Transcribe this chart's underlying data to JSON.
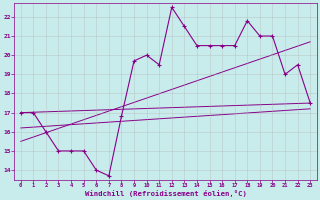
{
  "xlabel": "Windchill (Refroidissement éolien,°C)",
  "background_color": "#c8ecec",
  "grid_color": "#b0b0b0",
  "line_color": "#880088",
  "xlim": [
    -0.5,
    23.5
  ],
  "ylim": [
    13.5,
    22.7
  ],
  "xticks": [
    0,
    1,
    2,
    3,
    4,
    5,
    6,
    7,
    8,
    9,
    10,
    11,
    12,
    13,
    14,
    15,
    16,
    17,
    18,
    19,
    20,
    21,
    22,
    23
  ],
  "yticks": [
    14,
    15,
    16,
    17,
    18,
    19,
    20,
    21,
    22
  ],
  "series1_x": [
    0,
    1,
    2,
    3,
    4,
    5,
    6,
    7,
    8,
    9,
    10,
    11,
    12,
    13,
    14,
    15,
    16,
    17,
    18,
    19,
    20,
    21,
    22,
    23
  ],
  "series1_y": [
    17.0,
    17.0,
    16.0,
    15.0,
    15.0,
    15.0,
    14.0,
    13.7,
    16.8,
    19.7,
    20.0,
    19.5,
    22.5,
    21.5,
    20.5,
    20.5,
    20.5,
    20.5,
    21.8,
    21.0,
    21.0,
    19.0,
    19.5,
    17.5
  ],
  "line1_x": [
    0,
    23
  ],
  "line1_y": [
    17.0,
    17.5
  ],
  "line2_x": [
    0,
    23
  ],
  "line2_y": [
    16.2,
    17.2
  ],
  "line3_x": [
    0,
    23
  ],
  "line3_y": [
    15.5,
    20.7
  ]
}
